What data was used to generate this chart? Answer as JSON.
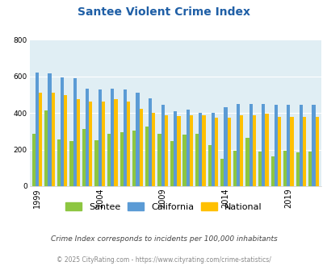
{
  "title": "Santee Violent Crime Index",
  "subtitle": "Crime Index corresponds to incidents per 100,000 inhabitants",
  "copyright": "© 2025 CityRating.com - https://www.cityrating.com/crime-statistics/",
  "years": [
    1999,
    2000,
    2001,
    2002,
    2003,
    2004,
    2005,
    2006,
    2007,
    2008,
    2009,
    2010,
    2011,
    2012,
    2013,
    2014,
    2015,
    2016,
    2017,
    2018,
    2019,
    2020,
    2021
  ],
  "santee": [
    285,
    415,
    255,
    245,
    315,
    250,
    285,
    295,
    305,
    325,
    285,
    245,
    280,
    285,
    225,
    150,
    195,
    265,
    190,
    165,
    195,
    185,
    190
  ],
  "california": [
    620,
    615,
    595,
    590,
    535,
    530,
    535,
    530,
    510,
    480,
    445,
    410,
    420,
    400,
    400,
    430,
    450,
    450,
    450,
    445,
    445,
    445,
    445
  ],
  "national": [
    510,
    510,
    500,
    475,
    465,
    465,
    475,
    465,
    425,
    400,
    390,
    385,
    390,
    390,
    375,
    375,
    390,
    390,
    395,
    380,
    380,
    380,
    380
  ],
  "bar_colors": {
    "santee": "#8dc641",
    "california": "#5b9bd5",
    "national": "#ffc000"
  },
  "bg_color": "#e0eef4",
  "ylim": [
    0,
    800
  ],
  "yticks": [
    0,
    200,
    400,
    600,
    800
  ],
  "xtick_years": [
    1999,
    2004,
    2009,
    2014,
    2019
  ],
  "title_color": "#1f5fa6",
  "subtitle_color": "#444444",
  "copyright_color": "#888888"
}
